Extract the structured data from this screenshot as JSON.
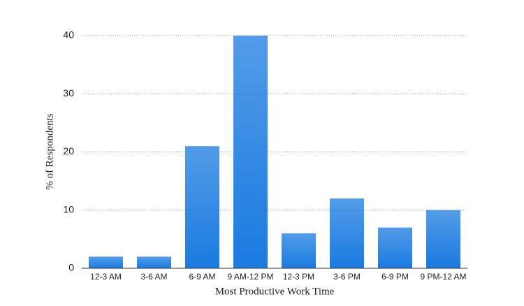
{
  "chart_data": {
    "type": "bar",
    "xlabel": "Most Productive Work Time",
    "ylabel": "% of Respondents",
    "categories": [
      "12-3 AM",
      "3-6 AM",
      "6-9 AM",
      "9 AM-12 PM",
      "12-3 PM",
      "3-6 PM",
      "6-9 PM",
      "9 PM-12 AM"
    ],
    "values": [
      2,
      2,
      21,
      40,
      6,
      12,
      7,
      10
    ],
    "color": "#1a7ae0",
    "ylim": [
      0,
      40
    ],
    "yticks": [
      0,
      10,
      20,
      30,
      40
    ],
    "grid": true
  }
}
